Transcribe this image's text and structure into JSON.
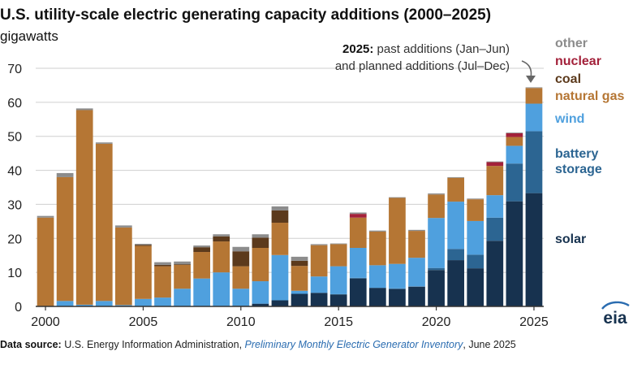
{
  "title": "U.S. utility-scale electric generating capacity additions (2000–2025)",
  "units": "gigawatts",
  "annotation": {
    "year": "2025",
    "colon": ":",
    "line1_rest": " past additions (Jan–Jun)",
    "line2": "and planned additions (Jul–Dec)"
  },
  "legend": {
    "other": "other",
    "nuclear": "nuclear",
    "coal": "coal",
    "natural_gas": "natural gas",
    "wind": "wind",
    "battery_line1": "battery",
    "battery_line2": "storage",
    "solar": "solar"
  },
  "source": {
    "label": "Data source:",
    "org": " U.S. Energy Information Administration, ",
    "pub": "Preliminary Monthly Electric Generator Inventory",
    "date": ", June 2025"
  },
  "logo_text": "eia",
  "colors": {
    "solar": "#17324f",
    "battery": "#2c6592",
    "wind": "#4fa0de",
    "natural_gas": "#b57634",
    "coal": "#5c3a1c",
    "nuclear": "#a3213a",
    "other": "#8c8c8c",
    "grid": "#cfcfcf",
    "axis": "#333333"
  },
  "chart_data": {
    "type": "bar",
    "stacked": true,
    "ylim": [
      0,
      70
    ],
    "yticks": [
      0,
      10,
      20,
      30,
      40,
      50,
      60,
      70
    ],
    "xtick_labels": [
      "2000",
      "2005",
      "2010",
      "2015",
      "2020",
      "2025"
    ],
    "xlabel": "",
    "ylabel": "gigawatts",
    "categories": [
      "2000",
      "2001",
      "2002",
      "2003",
      "2004",
      "2005",
      "2006",
      "2007",
      "2008",
      "2009",
      "2010",
      "2011",
      "2012",
      "2013",
      "2014",
      "2015",
      "2016",
      "2017",
      "2018",
      "2019",
      "2020",
      "2021",
      "2022",
      "2023",
      "2024",
      "2025"
    ],
    "series": [
      {
        "name": "solar",
        "color_key": "solar",
        "values": [
          0,
          0,
          0,
          0,
          0,
          0,
          0,
          0,
          0,
          0.1,
          0.2,
          0.8,
          1.8,
          3.7,
          4.0,
          3.5,
          8.2,
          5.4,
          5.1,
          5.8,
          10.7,
          13.6,
          11.2,
          19.3,
          30.9,
          33.3
        ]
      },
      {
        "name": "battery storage",
        "color_key": "battery",
        "values": [
          0,
          0,
          0,
          0,
          0,
          0,
          0,
          0,
          0,
          0,
          0,
          0,
          0,
          0,
          0,
          0.1,
          0.2,
          0.1,
          0.2,
          0.1,
          0.6,
          3.3,
          4.0,
          6.8,
          11.1,
          18.2
        ]
      },
      {
        "name": "wind",
        "color_key": "wind",
        "values": [
          0.1,
          1.6,
          0.5,
          1.6,
          0.4,
          2.2,
          2.6,
          5.2,
          8.2,
          9.9,
          5.0,
          6.6,
          13.3,
          0.9,
          4.8,
          8.2,
          8.8,
          6.6,
          7.2,
          8.4,
          14.7,
          13.9,
          9.9,
          6.6,
          5.2,
          8.1
        ]
      },
      {
        "name": "natural gas",
        "color_key": "natural_gas",
        "values": [
          26.0,
          36.4,
          57.2,
          46.2,
          22.8,
          15.6,
          9.2,
          7.0,
          7.8,
          9.1,
          6.6,
          9.8,
          9.5,
          7.3,
          9.2,
          6.5,
          8.9,
          9.9,
          19.4,
          7.9,
          6.9,
          7.0,
          6.4,
          8.6,
          2.6,
          4.6
        ]
      },
      {
        "name": "coal",
        "color_key": "coal",
        "values": [
          0,
          0,
          0,
          0,
          0,
          0.3,
          0.4,
          0.2,
          1.4,
          1.5,
          4.4,
          3.0,
          3.6,
          1.5,
          0,
          0,
          0,
          0,
          0,
          0,
          0,
          0,
          0,
          0,
          0,
          0
        ]
      },
      {
        "name": "nuclear",
        "color_key": "nuclear",
        "values": [
          0,
          0,
          0,
          0,
          0,
          0,
          0,
          0,
          0,
          0,
          0,
          0,
          0,
          0,
          0,
          0,
          1.1,
          0,
          0,
          0,
          0,
          0,
          0,
          1.1,
          1.1,
          0
        ]
      },
      {
        "name": "other",
        "color_key": "other",
        "values": [
          0.5,
          1.2,
          0.5,
          0.4,
          0.6,
          0.3,
          0.8,
          0.8,
          0.5,
          0.6,
          1.3,
          1.0,
          1.2,
          1.2,
          0.3,
          0.2,
          0.4,
          0.3,
          0.2,
          0.3,
          0.3,
          0.2,
          0.2,
          0.2,
          0.2,
          0.2
        ]
      }
    ]
  }
}
